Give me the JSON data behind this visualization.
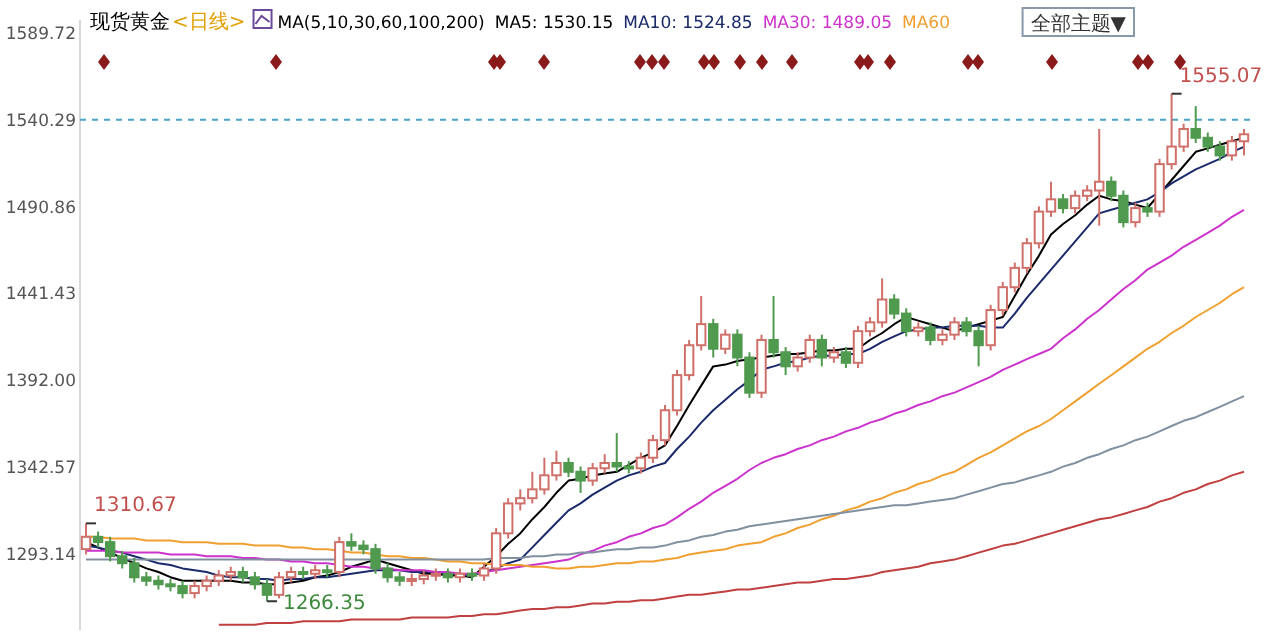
{
  "chart_data": {
    "type": "candlestick",
    "title": "现货黄金",
    "subtitle": "<日线>",
    "legend_title": "MA(5,10,30,60,100,200)",
    "legend": "top",
    "grid": false,
    "categories": [
      null,
      null,
      null,
      null,
      null,
      null,
      null,
      null,
      null,
      null,
      null,
      null,
      null,
      null,
      null,
      null,
      null,
      null,
      null,
      null,
      null,
      null,
      null,
      null,
      null,
      null,
      null,
      null,
      null,
      null,
      null,
      null,
      null,
      null,
      null,
      null,
      null,
      null,
      null,
      null,
      null,
      null,
      null,
      null,
      null,
      null,
      null,
      null,
      null,
      null,
      null,
      null,
      null,
      null,
      null,
      null,
      null,
      null,
      null,
      null,
      null,
      null,
      null,
      null,
      null,
      null,
      null,
      null,
      null,
      null,
      null,
      null,
      null,
      null,
      null,
      null,
      null,
      null,
      null,
      null,
      null,
      null,
      null,
      null,
      null,
      null,
      null,
      null,
      null,
      null,
      null,
      null,
      null,
      null,
      null,
      null,
      null
    ],
    "ohlc": [
      [
        1296,
        1310.67,
        1293,
        1303
      ],
      [
        1303,
        1306,
        1297,
        1300
      ],
      [
        1300,
        1303,
        1289,
        1292
      ],
      [
        1292,
        1295,
        1285,
        1288
      ],
      [
        1288,
        1291,
        1277,
        1280
      ],
      [
        1280,
        1283,
        1275,
        1278
      ],
      [
        1278,
        1281,
        1273,
        1276
      ],
      [
        1276,
        1279,
        1272,
        1275
      ],
      [
        1275,
        1278,
        1268,
        1271
      ],
      [
        1271,
        1278,
        1268,
        1275
      ],
      [
        1275,
        1281,
        1272,
        1278
      ],
      [
        1278,
        1284,
        1275,
        1281
      ],
      [
        1281,
        1286,
        1278,
        1283
      ],
      [
        1283,
        1286,
        1277,
        1280
      ],
      [
        1280,
        1283,
        1273,
        1276
      ],
      [
        1276,
        1279,
        1266.35,
        1270
      ],
      [
        1270,
        1283,
        1268,
        1280
      ],
      [
        1280,
        1286,
        1277,
        1283
      ],
      [
        1283,
        1286,
        1279,
        1282
      ],
      [
        1282,
        1287,
        1279,
        1284
      ],
      [
        1284,
        1287,
        1280,
        1283
      ],
      [
        1283,
        1303,
        1280,
        1300
      ],
      [
        1300,
        1305,
        1295,
        1298
      ],
      [
        1298,
        1301,
        1293,
        1296
      ],
      [
        1296,
        1299,
        1282,
        1285
      ],
      [
        1285,
        1288,
        1277,
        1280
      ],
      [
        1280,
        1283,
        1275,
        1278
      ],
      [
        1278,
        1282,
        1275,
        1279
      ],
      [
        1279,
        1284,
        1276,
        1281
      ],
      [
        1281,
        1285,
        1278,
        1282
      ],
      [
        1282,
        1285,
        1277,
        1280
      ],
      [
        1280,
        1285,
        1277,
        1282
      ],
      [
        1282,
        1285,
        1278,
        1281
      ],
      [
        1281,
        1288,
        1278,
        1285
      ],
      [
        1285,
        1308,
        1282,
        1305
      ],
      [
        1305,
        1325,
        1302,
        1322
      ],
      [
        1322,
        1330,
        1318,
        1325
      ],
      [
        1325,
        1340,
        1322,
        1330
      ],
      [
        1330,
        1348,
        1327,
        1338
      ],
      [
        1338,
        1352,
        1335,
        1345
      ],
      [
        1345,
        1348,
        1337,
        1340
      ],
      [
        1340,
        1343,
        1328,
        1335
      ],
      [
        1335,
        1345,
        1332,
        1342
      ],
      [
        1342,
        1350,
        1339,
        1345
      ],
      [
        1345,
        1362,
        1340,
        1343
      ],
      [
        1343,
        1346,
        1339,
        1342
      ],
      [
        1342,
        1351,
        1339,
        1348
      ],
      [
        1348,
        1361,
        1345,
        1358
      ],
      [
        1358,
        1378,
        1355,
        1375
      ],
      [
        1375,
        1398,
        1372,
        1395
      ],
      [
        1395,
        1415,
        1392,
        1412
      ],
      [
        1412,
        1440,
        1409,
        1424
      ],
      [
        1424,
        1427,
        1405,
        1410
      ],
      [
        1410,
        1421,
        1407,
        1418
      ],
      [
        1418,
        1421,
        1400,
        1405
      ],
      [
        1405,
        1408,
        1382,
        1385
      ],
      [
        1385,
        1418,
        1382,
        1415
      ],
      [
        1415,
        1440,
        1405,
        1408
      ],
      [
        1408,
        1411,
        1395,
        1400
      ],
      [
        1400,
        1408,
        1397,
        1405
      ],
      [
        1405,
        1418,
        1402,
        1415
      ],
      [
        1415,
        1418,
        1400,
        1405
      ],
      [
        1405,
        1411,
        1402,
        1408
      ],
      [
        1408,
        1411,
        1399,
        1402
      ],
      [
        1402,
        1423,
        1399,
        1420
      ],
      [
        1420,
        1428,
        1417,
        1425
      ],
      [
        1425,
        1450,
        1422,
        1438
      ],
      [
        1438,
        1441,
        1427,
        1430
      ],
      [
        1430,
        1433,
        1417,
        1420
      ],
      [
        1420,
        1425,
        1417,
        1422
      ],
      [
        1422,
        1425,
        1412,
        1415
      ],
      [
        1415,
        1421,
        1412,
        1418
      ],
      [
        1418,
        1428,
        1415,
        1425
      ],
      [
        1425,
        1428,
        1417,
        1420
      ],
      [
        1420,
        1423,
        1400,
        1412
      ],
      [
        1412,
        1435,
        1409,
        1432
      ],
      [
        1432,
        1448,
        1429,
        1445
      ],
      [
        1445,
        1459,
        1442,
        1456
      ],
      [
        1456,
        1473,
        1453,
        1470
      ],
      [
        1470,
        1491,
        1467,
        1488
      ],
      [
        1488,
        1505,
        1485,
        1495
      ],
      [
        1495,
        1498,
        1487,
        1490
      ],
      [
        1490,
        1500,
        1487,
        1497
      ],
      [
        1497,
        1503,
        1494,
        1500
      ],
      [
        1500,
        1535,
        1480,
        1505
      ],
      [
        1505,
        1508,
        1494,
        1497
      ],
      [
        1497,
        1500,
        1479,
        1482
      ],
      [
        1482,
        1493,
        1479,
        1490
      ],
      [
        1490,
        1493,
        1485,
        1488
      ],
      [
        1488,
        1518,
        1485,
        1515
      ],
      [
        1515,
        1555.07,
        1512,
        1525
      ],
      [
        1525,
        1538,
        1522,
        1535
      ],
      [
        1535,
        1548,
        1527,
        1530
      ],
      [
        1530,
        1533,
        1522,
        1525
      ],
      [
        1525,
        1528,
        1517,
        1520
      ],
      [
        1520,
        1531,
        1517,
        1528
      ],
      [
        1528,
        1535,
        1520,
        1532
      ]
    ],
    "value_labels": [
      "1310.67",
      null,
      null,
      null,
      null,
      null,
      null,
      null,
      null,
      null,
      null,
      null,
      null,
      null,
      null,
      "1266.35",
      null,
      null,
      null,
      null,
      null,
      null,
      null,
      null,
      null,
      null,
      null,
      null,
      null,
      null,
      null,
      null,
      null,
      null,
      null,
      null,
      null,
      null,
      null,
      null,
      null,
      null,
      null,
      null,
      null,
      null,
      null,
      null,
      null,
      null,
      null,
      null,
      null,
      null,
      null,
      null,
      null,
      null,
      null,
      null,
      null,
      null,
      null,
      null,
      null,
      null,
      null,
      null,
      null,
      null,
      null,
      null,
      null,
      null,
      null,
      null,
      null,
      null,
      null,
      null,
      null,
      null,
      null,
      null,
      null,
      null,
      null,
      null,
      null,
      null,
      "1555.07",
      null,
      null,
      null,
      null,
      null,
      null
    ],
    "series": [
      {
        "name": "MA5: 1530.15",
        "type": "line",
        "color": "#000000",
        "values": [
          1300,
          1297,
          1294,
          1291,
          1288,
          1285,
          1283,
          1280,
          1278,
          1278,
          1278,
          1278,
          1278,
          1277,
          1277,
          1276,
          1276,
          1277,
          1278,
          1280,
          1281,
          1283,
          1286,
          1288,
          1290,
          1288,
          1286,
          1284,
          1282,
          1282,
          1281,
          1281,
          1280,
          1286,
          1292,
          1299,
          1305,
          1313,
          1320,
          1328,
          1335,
          1336,
          1338,
          1339,
          1340,
          1344,
          1348,
          1351,
          1355,
          1366,
          1378,
          1389,
          1400,
          1401,
          1403,
          1404,
          1405,
          1406,
          1407,
          1407,
          1408,
          1409,
          1409,
          1410,
          1410,
          1415,
          1419,
          1424,
          1428,
          1426,
          1424,
          1422,
          1420,
          1422,
          1424,
          1426,
          1428,
          1440,
          1452,
          1463,
          1475,
          1481,
          1486,
          1492,
          1497,
          1495,
          1494,
          1492,
          1490,
          1498,
          1506,
          1514,
          1522,
          1524,
          1526,
          1528,
          1530.15
        ]
      },
      {
        "name": "MA10: 1524.85",
        "type": "line",
        "color": "#1b2a6b",
        "values": [
          1298,
          1297,
          1295,
          1294,
          1292,
          1290,
          1288,
          1287,
          1285,
          1284,
          1283,
          1281,
          1280,
          1280,
          1279,
          1279,
          1278,
          1279,
          1279,
          1280,
          1280,
          1281,
          1282,
          1283,
          1284,
          1284,
          1284,
          1283,
          1283,
          1283,
          1282,
          1282,
          1281,
          1283,
          1285,
          1288,
          1290,
          1297,
          1304,
          1311,
          1318,
          1322,
          1327,
          1331,
          1335,
          1338,
          1340,
          1343,
          1345,
          1353,
          1360,
          1368,
          1375,
          1381,
          1387,
          1392,
          1398,
          1400,
          1402,
          1403,
          1405,
          1406,
          1406,
          1407,
          1407,
          1410,
          1414,
          1417,
          1420,
          1421,
          1422,
          1422,
          1423,
          1423,
          1423,
          1422,
          1422,
          1430,
          1439,
          1447,
          1455,
          1463,
          1471,
          1479,
          1487,
          1489,
          1491,
          1493,
          1495,
          1499,
          1504,
          1508,
          1512,
          1515,
          1518,
          1522,
          1524.85
        ]
      },
      {
        "name": "MA30: 1489.05",
        "type": "line",
        "color": "#cc33cc",
        "values": [
          1295,
          1295,
          1295,
          1294,
          1294,
          1294,
          1294,
          1293,
          1293,
          1293,
          1292,
          1292,
          1292,
          1291,
          1291,
          1290,
          1290,
          1289,
          1289,
          1288,
          1288,
          1287,
          1286,
          1286,
          1285,
          1285,
          1284,
          1284,
          1284,
          1283,
          1283,
          1282,
          1282,
          1283,
          1284,
          1285,
          1286,
          1287,
          1288,
          1289,
          1290,
          1293,
          1295,
          1298,
          1300,
          1303,
          1305,
          1308,
          1310,
          1314,
          1319,
          1323,
          1328,
          1332,
          1336,
          1341,
          1345,
          1348,
          1350,
          1353,
          1355,
          1358,
          1360,
          1363,
          1365,
          1368,
          1370,
          1373,
          1375,
          1378,
          1380,
          1383,
          1385,
          1388,
          1391,
          1394,
          1398,
          1401,
          1404,
          1407,
          1410,
          1416,
          1421,
          1427,
          1432,
          1438,
          1444,
          1449,
          1455,
          1459,
          1463,
          1468,
          1472,
          1476,
          1480,
          1485,
          1489.05
        ]
      },
      {
        "name": "MA60",
        "type": "line",
        "color": "#f0a030",
        "values": [
          1303,
          1303,
          1302,
          1302,
          1302,
          1301,
          1301,
          1301,
          1300,
          1300,
          1300,
          1299,
          1299,
          1299,
          1298,
          1298,
          1298,
          1297,
          1297,
          1296,
          1296,
          1295,
          1294,
          1294,
          1293,
          1292,
          1292,
          1291,
          1291,
          1290,
          1289,
          1289,
          1288,
          1288,
          1287,
          1287,
          1287,
          1286,
          1286,
          1285,
          1285,
          1286,
          1286,
          1287,
          1288,
          1288,
          1289,
          1289,
          1290,
          1291,
          1293,
          1294,
          1295,
          1296,
          1298,
          1299,
          1300,
          1303,
          1305,
          1308,
          1310,
          1313,
          1315,
          1318,
          1320,
          1323,
          1325,
          1328,
          1330,
          1333,
          1335,
          1338,
          1340,
          1344,
          1348,
          1351,
          1355,
          1359,
          1363,
          1366,
          1370,
          1375,
          1380,
          1385,
          1390,
          1395,
          1400,
          1405,
          1410,
          1414,
          1419,
          1423,
          1428,
          1432,
          1436,
          1441,
          1445
        ]
      },
      {
        "type": "line",
        "color": "#8090a0",
        "values": [
          1290,
          1290,
          1290,
          1290,
          1290,
          1290,
          1290,
          1290,
          1290,
          1290,
          1290,
          1290,
          1290,
          1290,
          1290,
          1290,
          1290,
          1290,
          1290,
          1290,
          1290,
          1290,
          1290,
          1290,
          1290,
          1290,
          1290,
          1290,
          1290,
          1290,
          1290,
          1290,
          1290,
          1290,
          1291,
          1291,
          1291,
          1292,
          1292,
          1293,
          1293,
          1294,
          1294,
          1295,
          1296,
          1296,
          1297,
          1297,
          1298,
          1300,
          1301,
          1303,
          1304,
          1306,
          1307,
          1309,
          1310,
          1311,
          1312,
          1313,
          1314,
          1315,
          1316,
          1317,
          1318,
          1319,
          1320,
          1321,
          1321,
          1322,
          1323,
          1324,
          1325,
          1327,
          1329,
          1331,
          1333,
          1334,
          1336,
          1338,
          1340,
          1343,
          1345,
          1348,
          1350,
          1353,
          1355,
          1358,
          1360,
          1363,
          1366,
          1369,
          1371,
          1374,
          1377,
          1380,
          1383
        ]
      },
      {
        "type": "line",
        "color": "#c04040",
        "values": [
          null,
          null,
          null,
          null,
          null,
          null,
          null,
          null,
          null,
          null,
          null,
          1253,
          1253,
          1253,
          1253,
          1254,
          1254,
          1254,
          1255,
          1255,
          1255,
          1255,
          1256,
          1256,
          1256,
          1256,
          1256,
          1257,
          1257,
          1257,
          1257,
          1258,
          1258,
          1259,
          1259,
          1260,
          1261,
          1262,
          1262,
          1263,
          1263,
          1264,
          1265,
          1265,
          1266,
          1266,
          1267,
          1267,
          1268,
          1269,
          1270,
          1270,
          1271,
          1272,
          1273,
          1273,
          1274,
          1275,
          1276,
          1277,
          1277,
          1278,
          1279,
          1279,
          1280,
          1281,
          1283,
          1284,
          1285,
          1286,
          1288,
          1289,
          1290,
          1292,
          1294,
          1296,
          1298,
          1299,
          1301,
          1303,
          1305,
          1307,
          1309,
          1311,
          1313,
          1314,
          1316,
          1318,
          1320,
          1323,
          1325,
          1328,
          1330,
          1333,
          1335,
          1338,
          1340
        ]
      }
    ],
    "ylim": [
      1250,
      1597
    ],
    "yticks": [
      {
        "value": 1293.14,
        "label": "1293.14"
      },
      {
        "value": 1342.57,
        "label": "1342.57"
      },
      {
        "value": 1392,
        "label": "1392.00"
      },
      {
        "value": 1441.43,
        "label": "1441.43"
      },
      {
        "value": 1490.86,
        "label": "1490.86"
      },
      {
        "value": 1540.29,
        "label": "1540.29"
      },
      {
        "value": 1589.72,
        "label": "1589.72"
      }
    ],
    "tick_labels": "y",
    "ref_lines": [
      {
        "axis": "y",
        "value": 1540.29,
        "line_style": "dashed",
        "color": "#4aa3c8"
      }
    ],
    "annotations": [
      "全部主题▼"
    ]
  }
}
